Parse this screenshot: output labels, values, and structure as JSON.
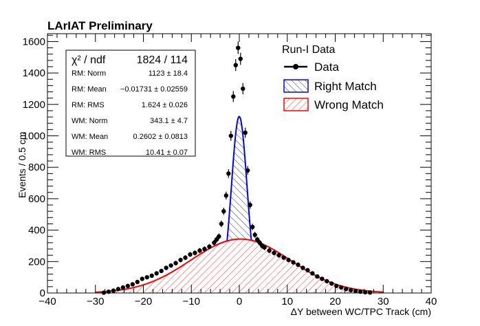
{
  "chart_data": {
    "type": "histogram-fit",
    "title": "LArIAT Preliminary",
    "xlabel": "ΔY between WC/TPC Track (cm)",
    "ylabel": "Events / 0.5 cm",
    "xlim": [
      -40,
      40
    ],
    "ylim": [
      0,
      1650
    ],
    "xticks": [
      -40,
      -30,
      -20,
      -10,
      0,
      10,
      20,
      30,
      40
    ],
    "yticks": [
      0,
      200,
      400,
      600,
      800,
      1000,
      1200,
      1400,
      1600
    ],
    "legend": {
      "header": "Run-I Data",
      "placement": "top-right",
      "entries": [
        {
          "label": "Data",
          "style": "marker-line",
          "color": "#000000"
        },
        {
          "label": "Right Match",
          "style": "hatched",
          "color": "#0000ff"
        },
        {
          "label": "Wrong Match",
          "style": "hatched",
          "color": "#ff0000"
        }
      ]
    },
    "stats": {
      "chi2_label": "χ² / ndf",
      "chi2_value": "1824 / 114",
      "rows": [
        {
          "name": "RM: Norm",
          "value": "1123 ± 18.4"
        },
        {
          "name": "RM: Mean",
          "value": "−0.01731 ± 0.02559"
        },
        {
          "name": "RM: RMS",
          "value": "1.624 ± 0.026"
        },
        {
          "name": "WM: Norm",
          "value": "343.1 ± 4.7"
        },
        {
          "name": "WM: Mean",
          "value": "0.2602 ± 0.0813"
        },
        {
          "name": "WM: RMS",
          "value": "10.41 ± 0.07"
        }
      ]
    },
    "series": [
      {
        "name": "Data",
        "x": [
          -28.25,
          -27.25,
          -26.25,
          -25.25,
          -24.25,
          -23.25,
          -22.25,
          -21.25,
          -20.25,
          -19.25,
          -18.25,
          -17.25,
          -16.25,
          -15.25,
          -14.25,
          -13.25,
          -12.25,
          -11.25,
          -10.25,
          -9.25,
          -8.25,
          -7.25,
          -6.25,
          -5.25,
          -4.75,
          -4.25,
          -3.75,
          -3.25,
          -2.75,
          -2.25,
          -1.75,
          -1.25,
          -0.75,
          -0.25,
          0.25,
          0.75,
          1.25,
          1.75,
          2.25,
          2.75,
          3.25,
          3.75,
          4.25,
          4.75,
          5.25,
          6.25,
          7.25,
          8.25,
          9.25,
          10.25,
          11.25,
          12.25,
          13.25,
          14.25,
          15.25,
          16.25,
          17.25,
          18.25,
          19.25,
          20.25,
          21.25,
          22.25,
          23.25,
          24.25,
          25.25,
          26.25,
          27.25
        ],
        "y": [
          2,
          8,
          15,
          25,
          35,
          45,
          55,
          70,
          90,
          100,
          110,
          125,
          140,
          160,
          175,
          190,
          210,
          225,
          245,
          255,
          270,
          280,
          295,
          320,
          340,
          360,
          440,
          520,
          620,
          760,
          1000,
          1250,
          1450,
          1560,
          1490,
          1300,
          1020,
          780,
          560,
          420,
          370,
          340,
          320,
          300,
          290,
          270,
          255,
          240,
          225,
          210,
          195,
          180,
          160,
          145,
          125,
          105,
          90,
          75,
          60,
          45,
          35,
          25,
          18,
          12,
          8,
          5,
          3
        ],
        "yerr": [
          1.5,
          3,
          4,
          5,
          6,
          7,
          7.5,
          8.5,
          9.5,
          10,
          10.5,
          11,
          12,
          12.5,
          13,
          14,
          14.5,
          15,
          15.5,
          16,
          16.5,
          17,
          17,
          18,
          18.5,
          19,
          21,
          23,
          25,
          27.5,
          31.5,
          35,
          38,
          39.5,
          38.5,
          36,
          32,
          28,
          23.5,
          20.5,
          19,
          18.5,
          18,
          17.5,
          17,
          16.5,
          16,
          15.5,
          15,
          14.5,
          14,
          13.5,
          12.5,
          12,
          11,
          10,
          9.5,
          8.5,
          7.5,
          6.5,
          6,
          5,
          4,
          3.5,
          3,
          2,
          1.5
        ]
      },
      {
        "name": "Right Match",
        "fit": "gaussian",
        "norm": 1123,
        "mean": -0.01731,
        "rms": 1.624,
        "color": "#0000ff"
      },
      {
        "name": "Wrong Match",
        "fit": "gaussian",
        "norm": 343.1,
        "mean": 0.2602,
        "rms": 10.41,
        "color": "#ff0000"
      }
    ]
  }
}
